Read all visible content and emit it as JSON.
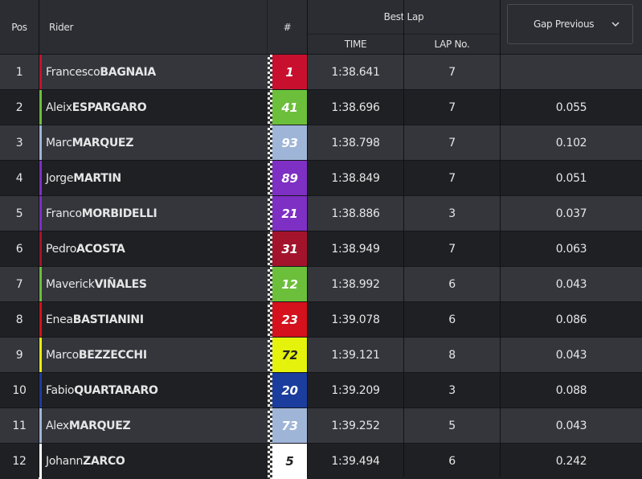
{
  "header": {
    "pos": "Pos",
    "rider": "Rider",
    "number": "#",
    "best_lap": "Best Lap",
    "time": "TIME",
    "lap": "LAP No.",
    "gap": "Gap Previous"
  },
  "table": {
    "rows": [
      {
        "pos": 1,
        "first": "Francesco",
        "last": "BAGNAIA",
        "number": 1,
        "color": "#c8102e",
        "time": "1:38.641",
        "lap": 7
      },
      {
        "pos": 2,
        "first": "Aleix",
        "last": "ESPARGARO",
        "number": 41,
        "color": "#6cbf3a",
        "time": "1:38.696",
        "lap": 7,
        "gap": "0.055"
      },
      {
        "pos": 3,
        "first": "Marc",
        "last": "MARQUEZ",
        "number": 93,
        "color": "#9fb5d8",
        "time": "1:38.798",
        "lap": 7,
        "gap": "0.102"
      },
      {
        "pos": 4,
        "first": "Jorge",
        "last": "MARTIN",
        "number": 89,
        "color": "#7e2fc4",
        "time": "1:38.849",
        "lap": 7,
        "gap": "0.051"
      },
      {
        "pos": 5,
        "first": "Franco",
        "last": "MORBIDELLI",
        "number": 21,
        "color": "#7e2fc4",
        "time": "1:38.886",
        "lap": 3,
        "gap": "0.037"
      },
      {
        "pos": 6,
        "first": "Pedro",
        "last": "ACOSTA",
        "number": 31,
        "color": "#a3142c",
        "time": "1:38.949",
        "lap": 7,
        "gap": "0.063"
      },
      {
        "pos": 7,
        "first": "Maverick",
        "last": "VIÑALES",
        "number": 12,
        "color": "#6cbf3a",
        "time": "1:38.992",
        "lap": 6,
        "gap": "0.043"
      },
      {
        "pos": 8,
        "first": "Enea",
        "last": "BASTIANINI",
        "number": 23,
        "color": "#d4111c",
        "time": "1:39.078",
        "lap": 6,
        "gap": "0.086"
      },
      {
        "pos": 9,
        "first": "Marco",
        "last": "BEZZECCHI",
        "number": 72,
        "color": "#e4f20c",
        "time": "1:39.121",
        "lap": 8,
        "gap": "0.043"
      },
      {
        "pos": 10,
        "first": "Fabio",
        "last": "QUARTARARO",
        "number": 20,
        "color": "#1a3d9e",
        "time": "1:39.209",
        "lap": 3,
        "gap": "0.088"
      },
      {
        "pos": 11,
        "first": "Alex",
        "last": "MARQUEZ",
        "number": 73,
        "color": "#9fb5d8",
        "time": "1:39.252",
        "lap": 5,
        "gap": "0.043"
      },
      {
        "pos": 12,
        "first": "Johann",
        "last": "ZARCO",
        "number": 5,
        "color": "#ffffff",
        "time": "1:39.494",
        "lap": 6,
        "gap": "0.242"
      }
    ]
  }
}
